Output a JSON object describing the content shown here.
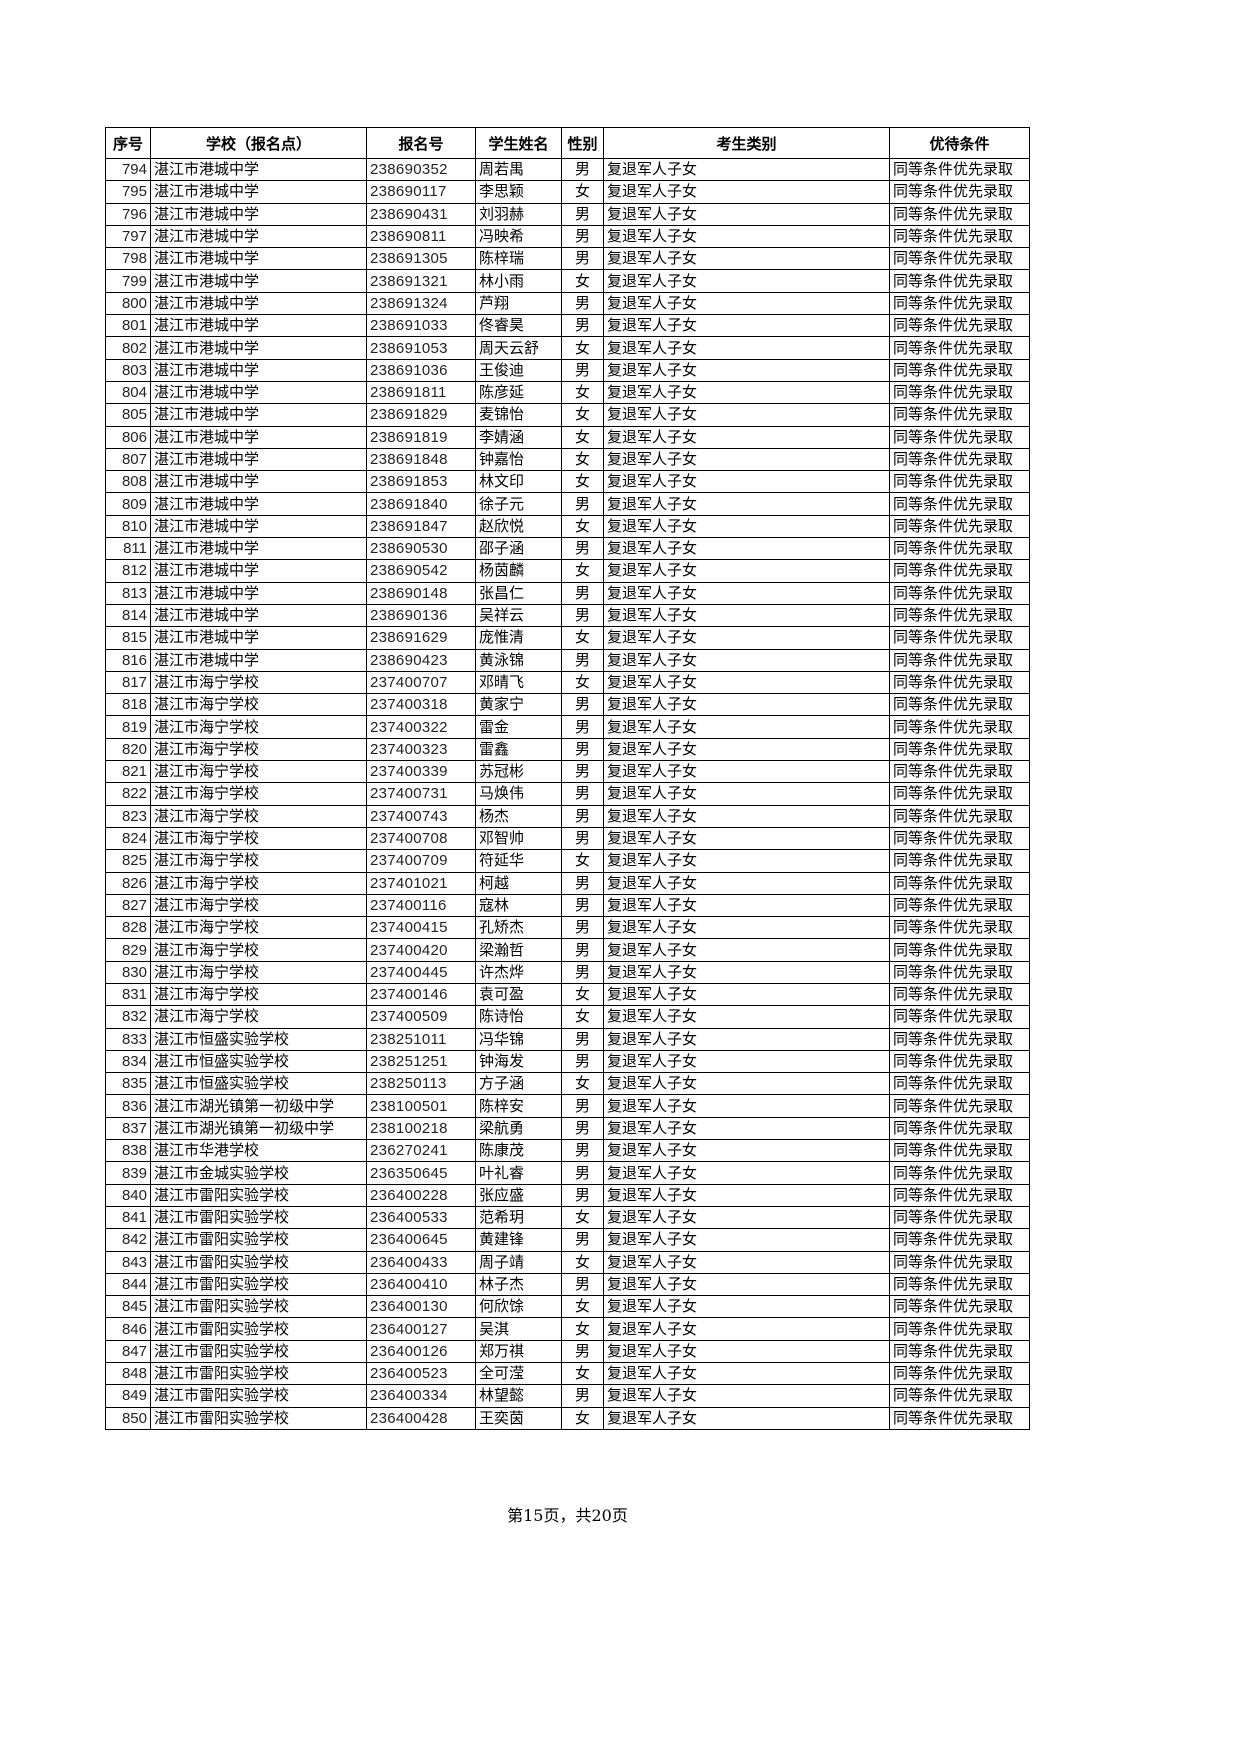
{
  "headers": [
    "序号",
    "学校（报名点）",
    "报名号",
    "学生姓名",
    "性别",
    "考生类别",
    "优待条件"
  ],
  "rows": [
    [
      "794",
      "湛江市港城中学",
      "238690352",
      "周若禺",
      "男",
      "复退军人子女",
      "同等条件优先录取"
    ],
    [
      "795",
      "湛江市港城中学",
      "238690117",
      "李思颖",
      "女",
      "复退军人子女",
      "同等条件优先录取"
    ],
    [
      "796",
      "湛江市港城中学",
      "238690431",
      "刘羽赫",
      "男",
      "复退军人子女",
      "同等条件优先录取"
    ],
    [
      "797",
      "湛江市港城中学",
      "238690811",
      "冯映希",
      "男",
      "复退军人子女",
      "同等条件优先录取"
    ],
    [
      "798",
      "湛江市港城中学",
      "238691305",
      "陈梓瑞",
      "男",
      "复退军人子女",
      "同等条件优先录取"
    ],
    [
      "799",
      "湛江市港城中学",
      "238691321",
      "林小雨",
      "女",
      "复退军人子女",
      "同等条件优先录取"
    ],
    [
      "800",
      "湛江市港城中学",
      "238691324",
      "芦翔",
      "男",
      "复退军人子女",
      "同等条件优先录取"
    ],
    [
      "801",
      "湛江市港城中学",
      "238691033",
      "佟睿昊",
      "男",
      "复退军人子女",
      "同等条件优先录取"
    ],
    [
      "802",
      "湛江市港城中学",
      "238691053",
      "周天云舒",
      "女",
      "复退军人子女",
      "同等条件优先录取"
    ],
    [
      "803",
      "湛江市港城中学",
      "238691036",
      "王俊迪",
      "男",
      "复退军人子女",
      "同等条件优先录取"
    ],
    [
      "804",
      "湛江市港城中学",
      "238691811",
      "陈彦延",
      "女",
      "复退军人子女",
      "同等条件优先录取"
    ],
    [
      "805",
      "湛江市港城中学",
      "238691829",
      "麦锦怡",
      "女",
      "复退军人子女",
      "同等条件优先录取"
    ],
    [
      "806",
      "湛江市港城中学",
      "238691819",
      "李婧涵",
      "女",
      "复退军人子女",
      "同等条件优先录取"
    ],
    [
      "807",
      "湛江市港城中学",
      "238691848",
      "钟嘉怡",
      "女",
      "复退军人子女",
      "同等条件优先录取"
    ],
    [
      "808",
      "湛江市港城中学",
      "238691853",
      "林文印",
      "女",
      "复退军人子女",
      "同等条件优先录取"
    ],
    [
      "809",
      "湛江市港城中学",
      "238691840",
      "徐子元",
      "男",
      "复退军人子女",
      "同等条件优先录取"
    ],
    [
      "810",
      "湛江市港城中学",
      "238691847",
      "赵欣悦",
      "女",
      "复退军人子女",
      "同等条件优先录取"
    ],
    [
      "811",
      "湛江市港城中学",
      "238690530",
      "邵子涵",
      "男",
      "复退军人子女",
      "同等条件优先录取"
    ],
    [
      "812",
      "湛江市港城中学",
      "238690542",
      "杨茵麟",
      "女",
      "复退军人子女",
      "同等条件优先录取"
    ],
    [
      "813",
      "湛江市港城中学",
      "238690148",
      "张昌仁",
      "男",
      "复退军人子女",
      "同等条件优先录取"
    ],
    [
      "814",
      "湛江市港城中学",
      "238690136",
      "吴祥云",
      "男",
      "复退军人子女",
      "同等条件优先录取"
    ],
    [
      "815",
      "湛江市港城中学",
      "238691629",
      "庞惟清",
      "女",
      "复退军人子女",
      "同等条件优先录取"
    ],
    [
      "816",
      "湛江市港城中学",
      "238690423",
      "黄泳锦",
      "男",
      "复退军人子女",
      "同等条件优先录取"
    ],
    [
      "817",
      "湛江市海宁学校",
      "237400707",
      "邓晴飞",
      "女",
      "复退军人子女",
      "同等条件优先录取"
    ],
    [
      "818",
      "湛江市海宁学校",
      "237400318",
      "黄家宁",
      "男",
      "复退军人子女",
      "同等条件优先录取"
    ],
    [
      "819",
      "湛江市海宁学校",
      "237400322",
      "雷金",
      "男",
      "复退军人子女",
      "同等条件优先录取"
    ],
    [
      "820",
      "湛江市海宁学校",
      "237400323",
      "雷鑫",
      "男",
      "复退军人子女",
      "同等条件优先录取"
    ],
    [
      "821",
      "湛江市海宁学校",
      "237400339",
      "苏冠彬",
      "男",
      "复退军人子女",
      "同等条件优先录取"
    ],
    [
      "822",
      "湛江市海宁学校",
      "237400731",
      "马焕伟",
      "男",
      "复退军人子女",
      "同等条件优先录取"
    ],
    [
      "823",
      "湛江市海宁学校",
      "237400743",
      "杨杰",
      "男",
      "复退军人子女",
      "同等条件优先录取"
    ],
    [
      "824",
      "湛江市海宁学校",
      "237400708",
      "邓智帅",
      "男",
      "复退军人子女",
      "同等条件优先录取"
    ],
    [
      "825",
      "湛江市海宁学校",
      "237400709",
      "符延华",
      "女",
      "复退军人子女",
      "同等条件优先录取"
    ],
    [
      "826",
      "湛江市海宁学校",
      "237401021",
      "柯越",
      "男",
      "复退军人子女",
      "同等条件优先录取"
    ],
    [
      "827",
      "湛江市海宁学校",
      "237400116",
      "寇林",
      "男",
      "复退军人子女",
      "同等条件优先录取"
    ],
    [
      "828",
      "湛江市海宁学校",
      "237400415",
      "孔矫杰",
      "男",
      "复退军人子女",
      "同等条件优先录取"
    ],
    [
      "829",
      "湛江市海宁学校",
      "237400420",
      "梁瀚哲",
      "男",
      "复退军人子女",
      "同等条件优先录取"
    ],
    [
      "830",
      "湛江市海宁学校",
      "237400445",
      "许杰烨",
      "男",
      "复退军人子女",
      "同等条件优先录取"
    ],
    [
      "831",
      "湛江市海宁学校",
      "237400146",
      "袁可盈",
      "女",
      "复退军人子女",
      "同等条件优先录取"
    ],
    [
      "832",
      "湛江市海宁学校",
      "237400509",
      "陈诗怡",
      "女",
      "复退军人子女",
      "同等条件优先录取"
    ],
    [
      "833",
      "湛江市恒盛实验学校",
      "238251011",
      "冯华锦",
      "男",
      "复退军人子女",
      "同等条件优先录取"
    ],
    [
      "834",
      "湛江市恒盛实验学校",
      "238251251",
      "钟海发",
      "男",
      "复退军人子女",
      "同等条件优先录取"
    ],
    [
      "835",
      "湛江市恒盛实验学校",
      "238250113",
      "方子涵",
      "女",
      "复退军人子女",
      "同等条件优先录取"
    ],
    [
      "836",
      "湛江市湖光镇第一初级中学",
      "238100501",
      "陈梓安",
      "男",
      "复退军人子女",
      "同等条件优先录取"
    ],
    [
      "837",
      "湛江市湖光镇第一初级中学",
      "238100218",
      "梁航勇",
      "男",
      "复退军人子女",
      "同等条件优先录取"
    ],
    [
      "838",
      "湛江市华港学校",
      "236270241",
      "陈康茂",
      "男",
      "复退军人子女",
      "同等条件优先录取"
    ],
    [
      "839",
      "湛江市金城实验学校",
      "236350645",
      "叶礼睿",
      "男",
      "复退军人子女",
      "同等条件优先录取"
    ],
    [
      "840",
      "湛江市雷阳实验学校",
      "236400228",
      "张应盛",
      "男",
      "复退军人子女",
      "同等条件优先录取"
    ],
    [
      "841",
      "湛江市雷阳实验学校",
      "236400533",
      "范希玥",
      "女",
      "复退军人子女",
      "同等条件优先录取"
    ],
    [
      "842",
      "湛江市雷阳实验学校",
      "236400645",
      "黄建锋",
      "男",
      "复退军人子女",
      "同等条件优先录取"
    ],
    [
      "843",
      "湛江市雷阳实验学校",
      "236400433",
      "周子靖",
      "女",
      "复退军人子女",
      "同等条件优先录取"
    ],
    [
      "844",
      "湛江市雷阳实验学校",
      "236400410",
      "林子杰",
      "男",
      "复退军人子女",
      "同等条件优先录取"
    ],
    [
      "845",
      "湛江市雷阳实验学校",
      "236400130",
      "何欣馀",
      "女",
      "复退军人子女",
      "同等条件优先录取"
    ],
    [
      "846",
      "湛江市雷阳实验学校",
      "236400127",
      "吴淇",
      "女",
      "复退军人子女",
      "同等条件优先录取"
    ],
    [
      "847",
      "湛江市雷阳实验学校",
      "236400126",
      "郑万祺",
      "男",
      "复退军人子女",
      "同等条件优先录取"
    ],
    [
      "848",
      "湛江市雷阳实验学校",
      "236400523",
      "全可滢",
      "女",
      "复退军人子女",
      "同等条件优先录取"
    ],
    [
      "849",
      "湛江市雷阳实验学校",
      "236400334",
      "林望懿",
      "男",
      "复退军人子女",
      "同等条件优先录取"
    ],
    [
      "850",
      "湛江市雷阳实验学校",
      "236400428",
      "王奕茵",
      "女",
      "复退军人子女",
      "同等条件优先录取"
    ]
  ],
  "footer": "第15页，共20页"
}
